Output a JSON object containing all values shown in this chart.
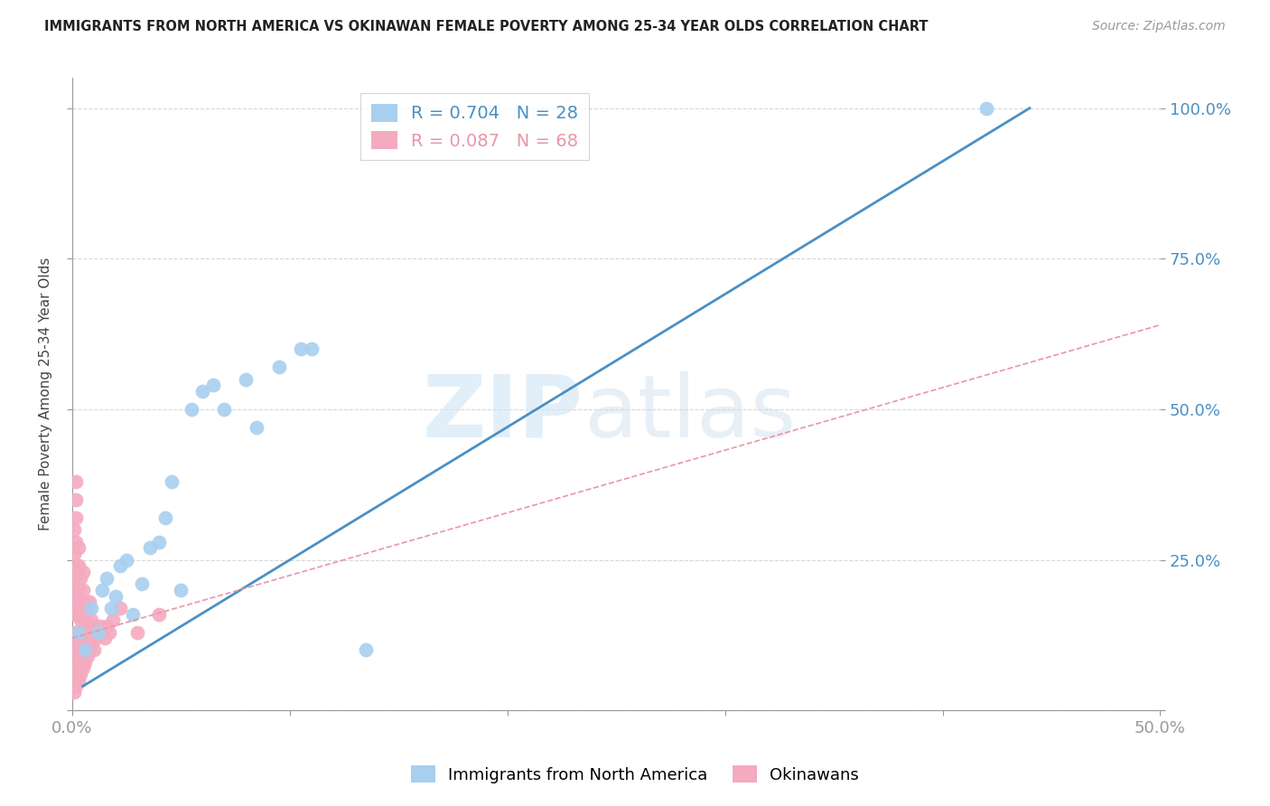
{
  "title": "IMMIGRANTS FROM NORTH AMERICA VS OKINAWAN FEMALE POVERTY AMONG 25-34 YEAR OLDS CORRELATION CHART",
  "source": "Source: ZipAtlas.com",
  "ylabel": "Female Poverty Among 25-34 Year Olds",
  "xmin": 0.0,
  "xmax": 0.5,
  "ymin": 0.0,
  "ymax": 1.05,
  "x_tick_positions": [
    0.0,
    0.1,
    0.2,
    0.3,
    0.4,
    0.5
  ],
  "x_tick_labels": [
    "0.0%",
    "",
    "",
    "",
    "",
    "50.0%"
  ],
  "y_tick_positions": [
    0.0,
    0.25,
    0.5,
    0.75,
    1.0
  ],
  "y_tick_labels_right": [
    "",
    "25.0%",
    "50.0%",
    "75.0%",
    "100.0%"
  ],
  "blue_R": 0.704,
  "blue_N": 28,
  "pink_R": 0.087,
  "pink_N": 68,
  "blue_color": "#A8CFEF",
  "pink_color": "#F4AABF",
  "blue_line_color": "#4A90C4",
  "pink_line_color": "#E896A8",
  "grid_color": "#D8D8D8",
  "background_color": "#FFFFFF",
  "blue_line_x0": 0.005,
  "blue_line_y0": 0.04,
  "blue_line_x1": 0.44,
  "blue_line_y1": 1.0,
  "pink_line_x0": 0.0,
  "pink_line_y0": 0.12,
  "pink_line_x1": 0.5,
  "pink_line_y1": 0.64,
  "blue_scatter_x": [
    0.003,
    0.006,
    0.009,
    0.012,
    0.014,
    0.016,
    0.018,
    0.02,
    0.022,
    0.025,
    0.028,
    0.032,
    0.036,
    0.04,
    0.043,
    0.046,
    0.05,
    0.055,
    0.06,
    0.065,
    0.07,
    0.08,
    0.085,
    0.095,
    0.105,
    0.11,
    0.135,
    0.42
  ],
  "blue_scatter_y": [
    0.13,
    0.1,
    0.17,
    0.13,
    0.2,
    0.22,
    0.17,
    0.19,
    0.24,
    0.25,
    0.16,
    0.21,
    0.27,
    0.28,
    0.32,
    0.38,
    0.2,
    0.5,
    0.53,
    0.54,
    0.5,
    0.55,
    0.47,
    0.57,
    0.6,
    0.6,
    0.1,
    1.0
  ],
  "pink_scatter_x": [
    0.001,
    0.001,
    0.001,
    0.001,
    0.001,
    0.001,
    0.001,
    0.001,
    0.001,
    0.001,
    0.001,
    0.002,
    0.002,
    0.002,
    0.002,
    0.002,
    0.002,
    0.002,
    0.002,
    0.002,
    0.002,
    0.002,
    0.002,
    0.003,
    0.003,
    0.003,
    0.003,
    0.003,
    0.003,
    0.003,
    0.003,
    0.004,
    0.004,
    0.004,
    0.004,
    0.004,
    0.004,
    0.005,
    0.005,
    0.005,
    0.005,
    0.005,
    0.005,
    0.006,
    0.006,
    0.006,
    0.006,
    0.007,
    0.007,
    0.007,
    0.008,
    0.008,
    0.008,
    0.009,
    0.009,
    0.01,
    0.01,
    0.011,
    0.012,
    0.013,
    0.014,
    0.015,
    0.016,
    0.017,
    0.019,
    0.022,
    0.03,
    0.04
  ],
  "pink_scatter_y": [
    0.03,
    0.05,
    0.07,
    0.09,
    0.11,
    0.13,
    0.16,
    0.19,
    0.22,
    0.26,
    0.3,
    0.04,
    0.06,
    0.08,
    0.1,
    0.13,
    0.17,
    0.2,
    0.24,
    0.28,
    0.32,
    0.35,
    0.38,
    0.05,
    0.07,
    0.1,
    0.13,
    0.16,
    0.2,
    0.24,
    0.27,
    0.06,
    0.08,
    0.11,
    0.15,
    0.18,
    0.22,
    0.07,
    0.09,
    0.12,
    0.16,
    0.2,
    0.23,
    0.08,
    0.11,
    0.14,
    0.18,
    0.09,
    0.13,
    0.17,
    0.1,
    0.14,
    0.18,
    0.11,
    0.15,
    0.1,
    0.14,
    0.12,
    0.13,
    0.14,
    0.13,
    0.12,
    0.14,
    0.13,
    0.15,
    0.17,
    0.13,
    0.16
  ],
  "legend_label_blue": "Immigrants from North America",
  "legend_label_pink": "Okinawans"
}
